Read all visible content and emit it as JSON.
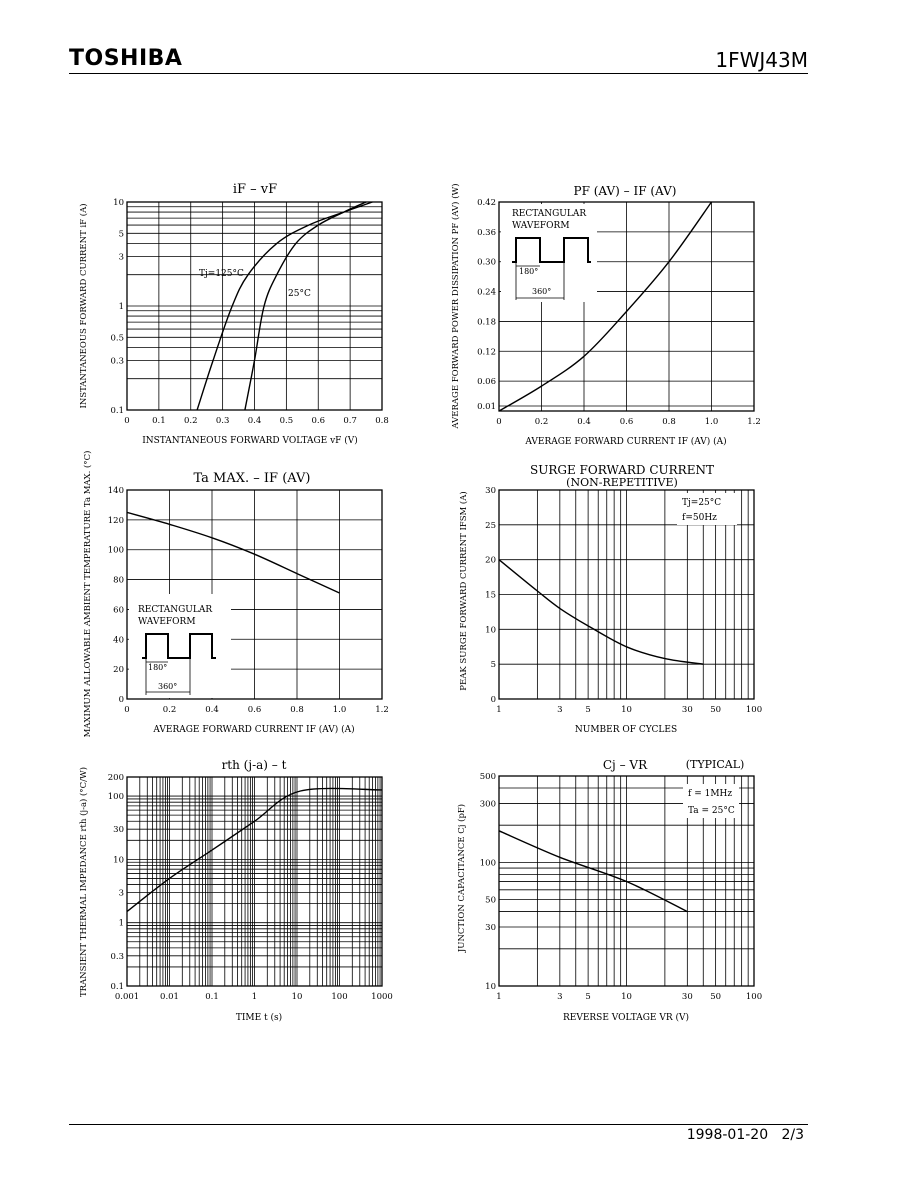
{
  "header": {
    "brand": "TOSHIBA",
    "part_number": "1FWJ43M"
  },
  "footer": {
    "date": "1998-01-20",
    "page": "2/3"
  },
  "chart_data": [
    {
      "id": "c1",
      "type": "line",
      "title": "iF – vF",
      "xlabel": "INSTANTANEOUS FORWARD VOLTAGE vF (V)",
      "ylabel": "INSTANTANEOUS FORWARD CURRENT iF (A)",
      "xlim": [
        0,
        0.8
      ],
      "ylim": [
        0.1,
        10
      ],
      "yscale": "log",
      "xticks": [
        "0",
        "0.1",
        "0.2",
        "0.3",
        "0.4",
        "0.5",
        "0.6",
        "0.7",
        "0.8"
      ],
      "yticks": [
        "0.1",
        "0.3",
        "0.5",
        "1",
        "3",
        "5",
        "10"
      ],
      "series": [
        {
          "name": "Tj=125°C",
          "points": [
            [
              0.22,
              0.1
            ],
            [
              0.27,
              0.3
            ],
            [
              0.33,
              1
            ],
            [
              0.38,
              2
            ],
            [
              0.47,
              4
            ],
            [
              0.57,
              6
            ],
            [
              0.68,
              8
            ],
            [
              0.77,
              10
            ]
          ]
        },
        {
          "name": "25°C",
          "points": [
            [
              0.37,
              0.1
            ],
            [
              0.4,
              0.3
            ],
            [
              0.43,
              1
            ],
            [
              0.47,
              2
            ],
            [
              0.53,
              4
            ],
            [
              0.6,
              6
            ],
            [
              0.68,
              8
            ],
            [
              0.75,
              10
            ]
          ]
        }
      ]
    },
    {
      "id": "c2",
      "type": "line",
      "title": "PF (AV) – IF (AV)",
      "xlabel": "AVERAGE FORWARD CURRENT IF (AV) (A)",
      "ylabel": "AVERAGE FORWARD POWER DISSIPATION PF (AV) (W)",
      "xlim": [
        0,
        1.2
      ],
      "ylim": [
        0,
        0.42
      ],
      "xticks": [
        "0",
        "0.2",
        "0.4",
        "0.6",
        "0.8",
        "1.0",
        "1.2"
      ],
      "yticks": [
        "0.01",
        "0.06",
        "0.12",
        "0.18",
        "0.24",
        "0.30",
        "0.36",
        "0.42"
      ],
      "annotation": {
        "lines": [
          "RECTANGULAR",
          "WAVEFORM"
        ],
        "angle1": "180°",
        "angle2": "360°"
      },
      "series": [
        {
          "points": [
            [
              0,
              0
            ],
            [
              0.2,
              0.05
            ],
            [
              0.4,
              0.11
            ],
            [
              0.6,
              0.2
            ],
            [
              0.8,
              0.3
            ],
            [
              1.0,
              0.42
            ]
          ]
        }
      ]
    },
    {
      "id": "c3",
      "type": "line",
      "title": "Ta MAX. – IF (AV)",
      "xlabel": "AVERAGE FORWARD CURRENT IF (AV) (A)",
      "ylabel": "MAXIMUM ALLOWABLE AMBIENT TEMPERATURE Ta MAX. (°C)",
      "xlim": [
        0,
        1.2
      ],
      "ylim": [
        0,
        140
      ],
      "xticks": [
        "0",
        "0.2",
        "0.4",
        "0.6",
        "0.8",
        "1.0",
        "1.2"
      ],
      "yticks": [
        "0",
        "20",
        "40",
        "60",
        "80",
        "100",
        "120",
        "140"
      ],
      "annotation": {
        "lines": [
          "RECTANGULAR",
          "WAVEFORM"
        ],
        "angle1": "180°",
        "angle2": "360°"
      },
      "series": [
        {
          "points": [
            [
              0,
              125
            ],
            [
              0.2,
              117
            ],
            [
              0.4,
              108
            ],
            [
              0.6,
              97
            ],
            [
              0.8,
              84
            ],
            [
              1.0,
              71
            ]
          ]
        }
      ]
    },
    {
      "id": "c4",
      "type": "line",
      "title": "SURGE FORWARD CURRENT",
      "subtitle": "(NON-REPETITIVE)",
      "xlabel": "NUMBER OF CYCLES",
      "ylabel": "PEAK SURGE FORWARD CURRENT IFSM (A)",
      "xlim": [
        1,
        100
      ],
      "xscale": "log",
      "ylim": [
        0,
        30
      ],
      "xticks": [
        "1",
        "3",
        "5",
        "10",
        "30",
        "50",
        "100"
      ],
      "yticks": [
        "0",
        "5",
        "10",
        "15",
        "20",
        "25",
        "30"
      ],
      "notes": [
        "Tj=25°C",
        "f=50Hz"
      ],
      "series": [
        {
          "points": [
            [
              1,
              20
            ],
            [
              2,
              15.5
            ],
            [
              3,
              13
            ],
            [
              5,
              10.5
            ],
            [
              10,
              7.5
            ],
            [
              20,
              5.8
            ],
            [
              40,
              5
            ]
          ]
        }
      ]
    },
    {
      "id": "c5",
      "type": "line",
      "title": "rth (j-a) – t",
      "xlabel": "TIME t (s)",
      "ylabel": "TRANSIENT THERMAL IMPEDANCE rth (j-a) (°C/W)",
      "xlim": [
        0.001,
        1000
      ],
      "xscale": "log",
      "ylim": [
        0.1,
        200
      ],
      "yscale": "log",
      "xticks": [
        "0.001",
        "0.01",
        "0.1",
        "1",
        "10",
        "100",
        "1000"
      ],
      "yticks": [
        "0.1",
        "0.3",
        "1",
        "3",
        "10",
        "30",
        "100",
        "200"
      ],
      "series": [
        {
          "points": [
            [
              0.001,
              1.5
            ],
            [
              0.01,
              5
            ],
            [
              0.1,
              14
            ],
            [
              1,
              40
            ],
            [
              12,
              120
            ],
            [
              1000,
              125
            ]
          ]
        }
      ]
    },
    {
      "id": "c6",
      "type": "line",
      "title": "Cj – VR",
      "subtitle": "(TYPICAL)",
      "xlabel": "REVERSE VOLTAGE VR (V)",
      "ylabel": "JUNCTION CAPACITANCE Cj (pF)",
      "xlim": [
        1,
        100
      ],
      "xscale": "log",
      "ylim": [
        10,
        500
      ],
      "yscale": "log",
      "xticks": [
        "1",
        "3",
        "5",
        "10",
        "30",
        "50",
        "100"
      ],
      "yticks": [
        "10",
        "30",
        "50",
        "100",
        "300",
        "500"
      ],
      "notes": [
        "f = 1MHz",
        "Ta = 25°C"
      ],
      "series": [
        {
          "points": [
            [
              1,
              180
            ],
            [
              3,
              110
            ],
            [
              10,
              70
            ],
            [
              30,
              40
            ]
          ]
        }
      ]
    }
  ]
}
